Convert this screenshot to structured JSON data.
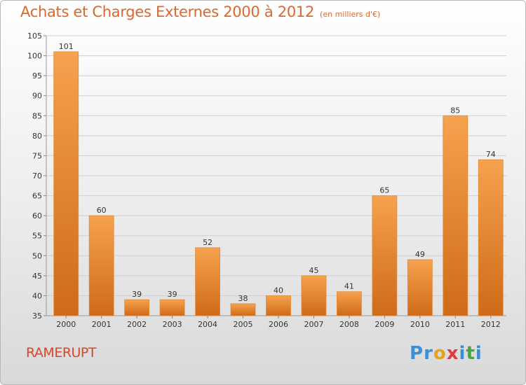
{
  "title": "Achats et Charges Externes 2000 à 2012",
  "subtitle": "(en milliers d'€)",
  "place": "RAMERUPT",
  "logo": {
    "text": "Proxiti",
    "letters": [
      {
        "ch": "P",
        "color": "#3b8fd6"
      },
      {
        "ch": "r",
        "color": "#3b8fd6"
      },
      {
        "ch": "o",
        "color": "#e8a21a"
      },
      {
        "ch": "x",
        "color": "#e03b3b"
      },
      {
        "ch": "i",
        "color": "#3b8fd6"
      },
      {
        "ch": "t",
        "color": "#46a83c"
      },
      {
        "ch": "i",
        "color": "#3b8fd6"
      }
    ]
  },
  "colors": {
    "bar_top": "#f6a24e",
    "bar_bottom": "#cf6a18",
    "title": "#e0662c",
    "grid": "#cfcfcf",
    "axis_text": "#333333"
  },
  "chart_data": {
    "type": "bar",
    "categories": [
      "2000",
      "2001",
      "2002",
      "2003",
      "2004",
      "2005",
      "2006",
      "2007",
      "2008",
      "2009",
      "2010",
      "2011",
      "2012"
    ],
    "values": [
      101,
      60,
      39,
      39,
      52,
      38,
      40,
      45,
      41,
      65,
      49,
      85,
      74
    ],
    "ylim": [
      35,
      105
    ],
    "yticks": [
      35,
      40,
      45,
      50,
      55,
      60,
      65,
      70,
      75,
      80,
      85,
      90,
      95,
      100,
      105
    ],
    "grid": true,
    "xlabel": "",
    "ylabel": ""
  }
}
